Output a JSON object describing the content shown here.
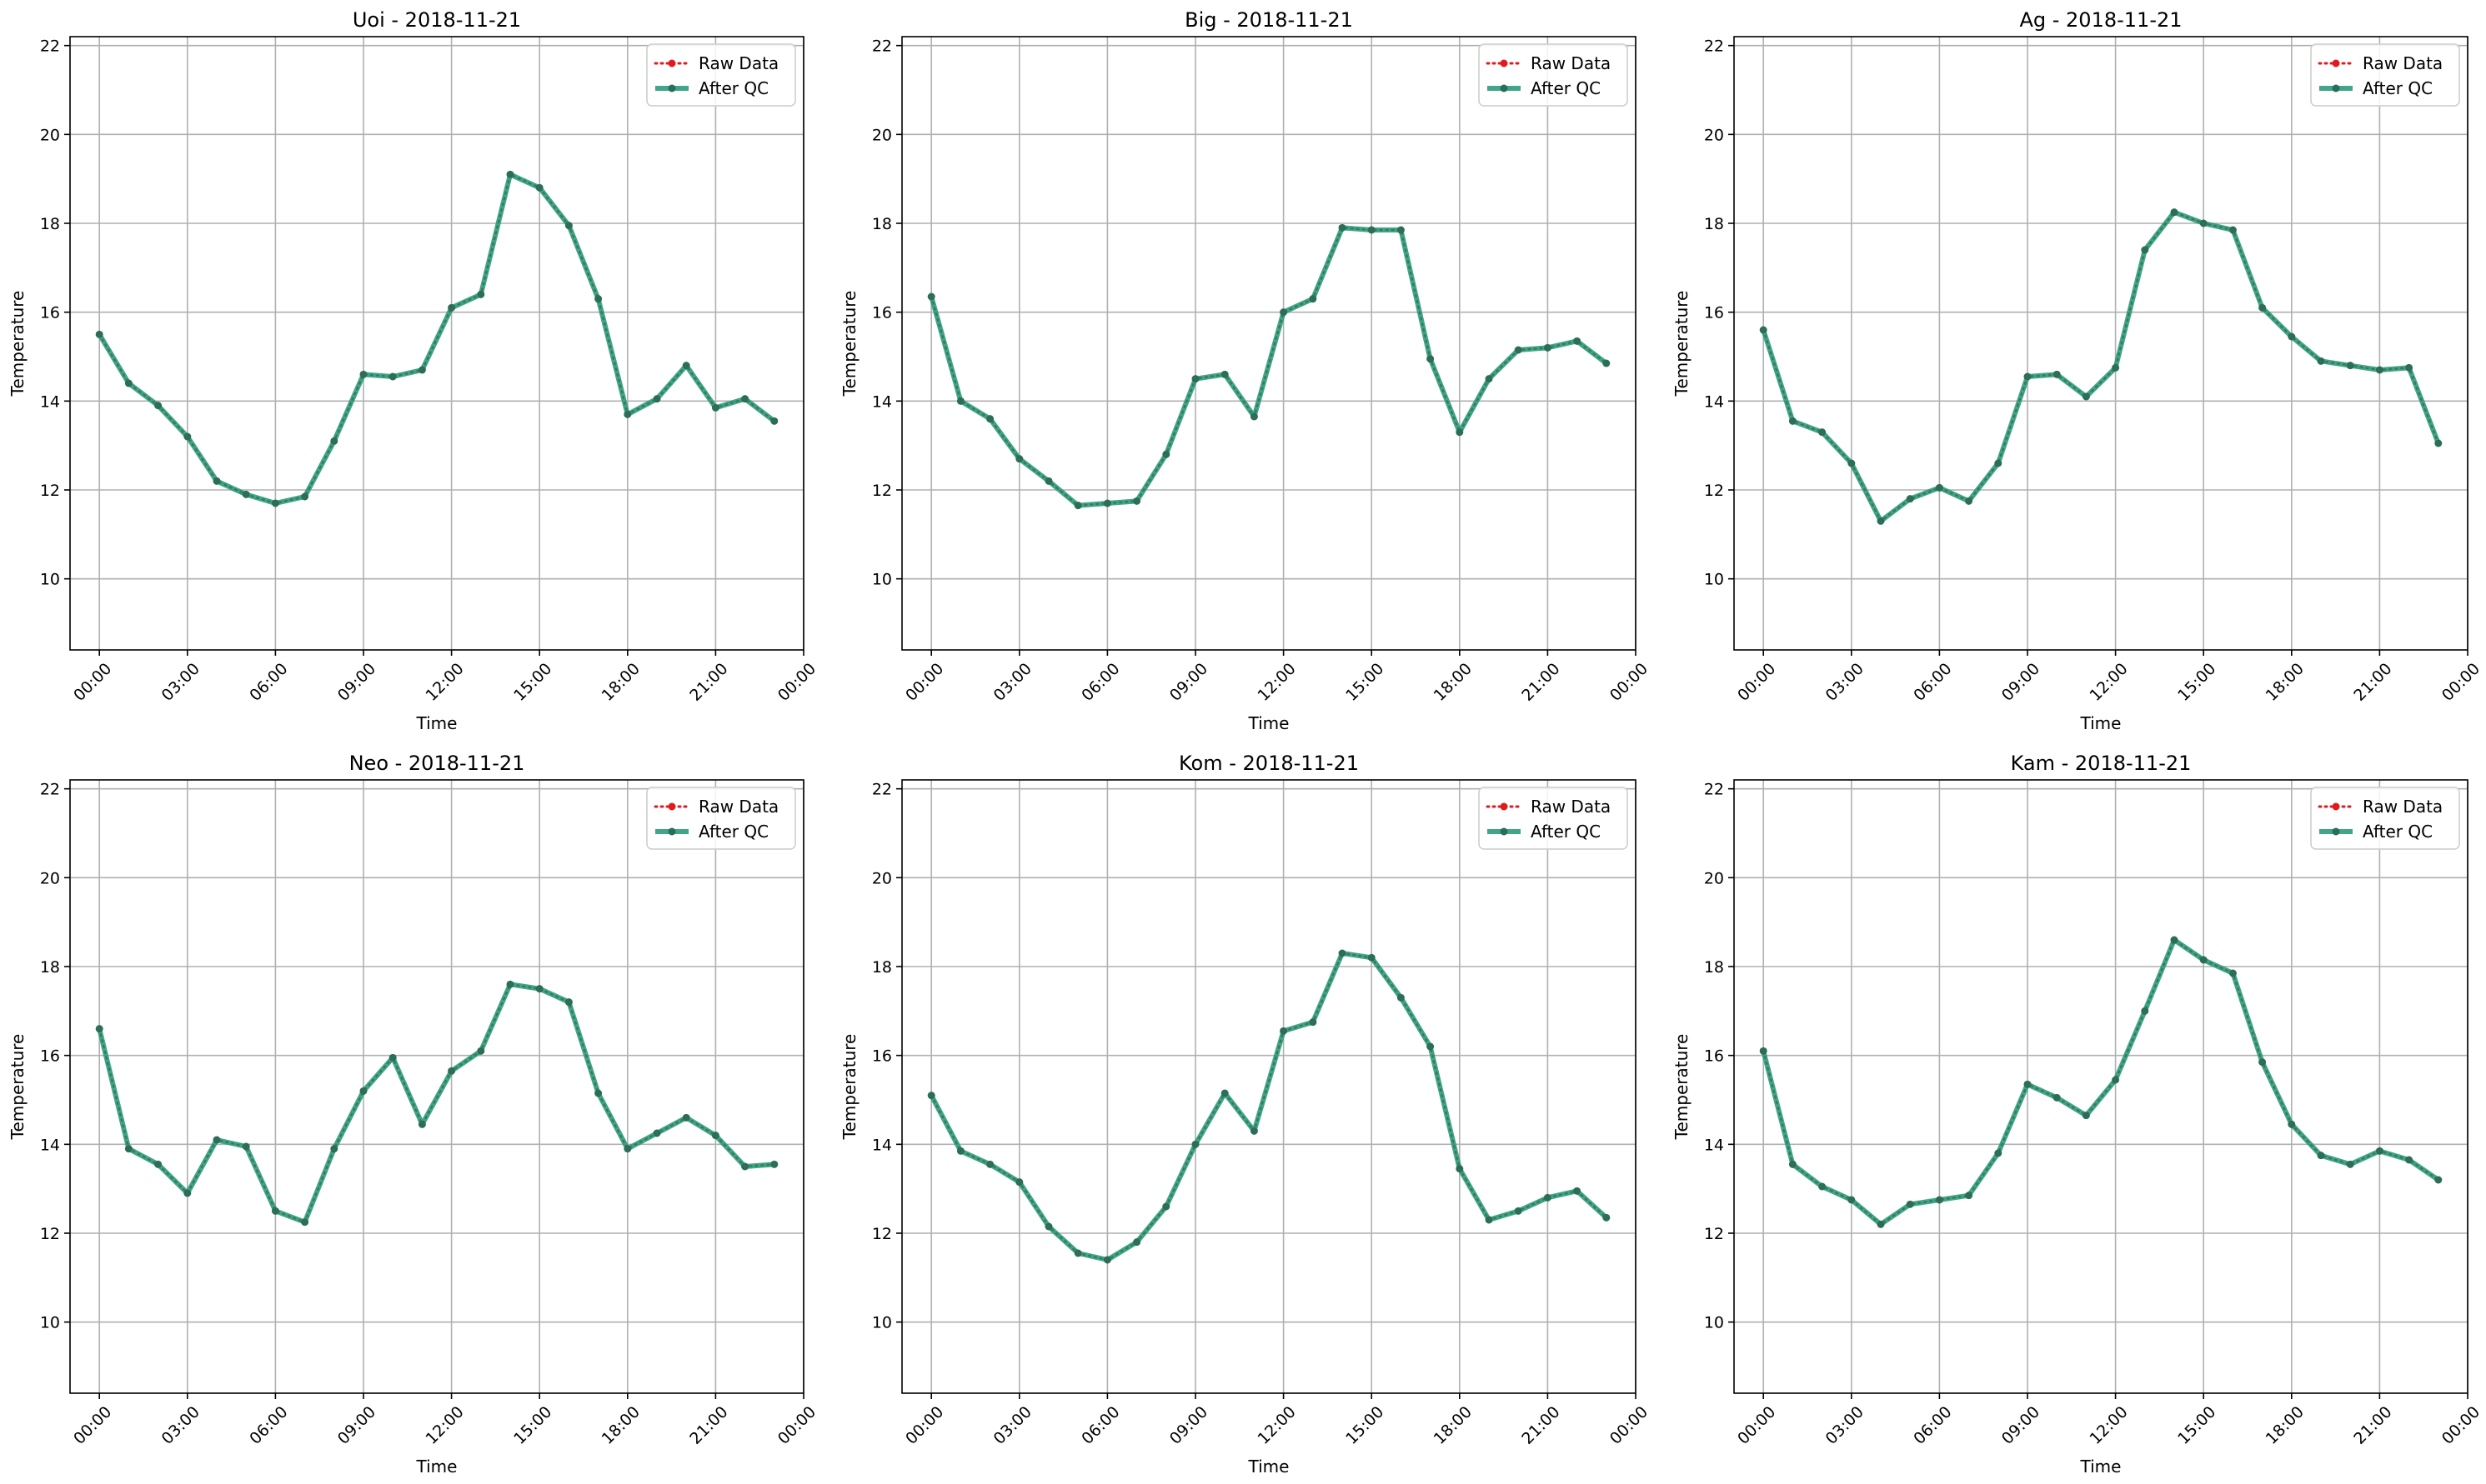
{
  "figure": {
    "x_ticks": [
      "00:00",
      "03:00",
      "06:00",
      "09:00",
      "12:00",
      "15:00",
      "18:00",
      "21:00",
      "00:00"
    ],
    "y_ticks": [
      10,
      12,
      14,
      16,
      18,
      20,
      22
    ],
    "xlabel": "Time",
    "ylabel": "Temperature",
    "legend": {
      "raw_label": "Raw Data",
      "qc_label": "After QC",
      "placement": "top-right"
    },
    "colors": {
      "raw": "#e31a1c",
      "qc": "#2a9d7c",
      "grid": "#b0b0b0"
    }
  },
  "chart_data": [
    {
      "type": "line",
      "title": "Uoi - 2018-11-21",
      "xlabel": "Time",
      "ylabel": "Temperature",
      "x_unit": "hour",
      "xlim": [
        -1,
        24
      ],
      "ylim": [
        8.4,
        22.2
      ],
      "grid": true,
      "x": [
        0,
        1,
        2,
        3,
        4,
        5,
        6,
        7,
        8,
        9,
        10,
        11,
        12,
        13,
        14,
        15,
        16,
        17,
        18,
        19,
        20,
        21,
        22,
        23
      ],
      "series": [
        {
          "name": "Raw Data",
          "style": "dotted-marker",
          "values": [
            15.5,
            14.4,
            13.9,
            13.2,
            12.2,
            11.9,
            11.7,
            11.85,
            13.1,
            14.6,
            14.55,
            14.7,
            16.1,
            16.4,
            19.1,
            18.8,
            17.95,
            16.3,
            13.7,
            14.05,
            14.8,
            13.85,
            14.05,
            13.55
          ]
        },
        {
          "name": "After QC",
          "style": "solid-marker",
          "values": [
            15.5,
            14.4,
            13.9,
            13.2,
            12.2,
            11.9,
            11.7,
            11.85,
            13.1,
            14.6,
            14.55,
            14.7,
            16.1,
            16.4,
            19.1,
            18.8,
            17.95,
            16.3,
            13.7,
            14.05,
            14.8,
            13.85,
            14.05,
            13.55
          ]
        }
      ]
    },
    {
      "type": "line",
      "title": "Big - 2018-11-21",
      "xlabel": "Time",
      "ylabel": "Temperature",
      "x_unit": "hour",
      "xlim": [
        -1,
        24
      ],
      "ylim": [
        8.4,
        22.2
      ],
      "grid": true,
      "x": [
        0,
        1,
        2,
        3,
        4,
        5,
        6,
        7,
        8,
        9,
        10,
        11,
        12,
        13,
        14,
        15,
        16,
        17,
        18,
        19,
        20,
        21,
        22,
        23
      ],
      "series": [
        {
          "name": "Raw Data",
          "style": "dotted-marker",
          "values": [
            16.35,
            14.0,
            13.6,
            12.7,
            12.2,
            11.65,
            11.7,
            11.75,
            12.8,
            14.5,
            14.6,
            13.65,
            16.0,
            16.3,
            17.9,
            17.85,
            17.85,
            14.95,
            13.3,
            14.5,
            15.15,
            15.2,
            15.35,
            14.85
          ]
        },
        {
          "name": "After QC",
          "style": "solid-marker",
          "values": [
            16.35,
            14.0,
            13.6,
            12.7,
            12.2,
            11.65,
            11.7,
            11.75,
            12.8,
            14.5,
            14.6,
            13.65,
            16.0,
            16.3,
            17.9,
            17.85,
            17.85,
            14.95,
            13.3,
            14.5,
            15.15,
            15.2,
            15.35,
            14.85
          ]
        }
      ]
    },
    {
      "type": "line",
      "title": "Ag - 2018-11-21",
      "xlabel": "Time",
      "ylabel": "Temperature",
      "x_unit": "hour",
      "xlim": [
        -1,
        24
      ],
      "ylim": [
        8.4,
        22.2
      ],
      "grid": true,
      "x": [
        0,
        1,
        2,
        3,
        4,
        5,
        6,
        7,
        8,
        9,
        10,
        11,
        12,
        13,
        14,
        15,
        16,
        17,
        18,
        19,
        20,
        21,
        22,
        23
      ],
      "series": [
        {
          "name": "Raw Data",
          "style": "dotted-marker",
          "values": [
            15.6,
            13.55,
            13.3,
            12.6,
            11.3,
            11.8,
            12.05,
            11.75,
            12.6,
            14.55,
            14.6,
            14.1,
            14.75,
            17.4,
            18.25,
            18.0,
            17.85,
            16.1,
            15.45,
            14.9,
            14.8,
            14.7,
            14.75,
            13.05
          ]
        },
        {
          "name": "After QC",
          "style": "solid-marker",
          "values": [
            15.6,
            13.55,
            13.3,
            12.6,
            11.3,
            11.8,
            12.05,
            11.75,
            12.6,
            14.55,
            14.6,
            14.1,
            14.75,
            17.4,
            18.25,
            18.0,
            17.85,
            16.1,
            15.45,
            14.9,
            14.8,
            14.7,
            14.75,
            13.05
          ]
        }
      ]
    },
    {
      "type": "line",
      "title": "Neo - 2018-11-21",
      "xlabel": "Time",
      "ylabel": "Temperature",
      "x_unit": "hour",
      "xlim": [
        -1,
        24
      ],
      "ylim": [
        8.4,
        22.2
      ],
      "grid": true,
      "x": [
        0,
        1,
        2,
        3,
        4,
        5,
        6,
        7,
        8,
        9,
        10,
        11,
        12,
        13,
        14,
        15,
        16,
        17,
        18,
        19,
        20,
        21,
        22,
        23
      ],
      "series": [
        {
          "name": "Raw Data",
          "style": "dotted-marker",
          "values": [
            16.6,
            13.9,
            13.55,
            12.9,
            14.1,
            13.95,
            12.5,
            12.25,
            13.9,
            15.2,
            15.95,
            14.45,
            15.65,
            16.1,
            17.6,
            17.5,
            17.2,
            15.15,
            13.9,
            14.25,
            14.6,
            14.2,
            13.5,
            13.55
          ]
        },
        {
          "name": "After QC",
          "style": "solid-marker",
          "values": [
            16.6,
            13.9,
            13.55,
            12.9,
            14.1,
            13.95,
            12.5,
            12.25,
            13.9,
            15.2,
            15.95,
            14.45,
            15.65,
            16.1,
            17.6,
            17.5,
            17.2,
            15.15,
            13.9,
            14.25,
            14.6,
            14.2,
            13.5,
            13.55
          ]
        }
      ]
    },
    {
      "type": "line",
      "title": "Kom - 2018-11-21",
      "xlabel": "Time",
      "ylabel": "Temperature",
      "x_unit": "hour",
      "xlim": [
        -1,
        24
      ],
      "ylim": [
        8.4,
        22.2
      ],
      "grid": true,
      "x": [
        0,
        1,
        2,
        3,
        4,
        5,
        6,
        7,
        8,
        9,
        10,
        11,
        12,
        13,
        14,
        15,
        16,
        17,
        18,
        19,
        20,
        21,
        22,
        23
      ],
      "series": [
        {
          "name": "Raw Data",
          "style": "dotted-marker",
          "values": [
            15.1,
            13.85,
            13.55,
            13.15,
            12.15,
            11.55,
            11.4,
            11.8,
            12.6,
            14.0,
            15.15,
            14.3,
            16.55,
            16.75,
            18.3,
            18.2,
            17.3,
            16.2,
            13.45,
            12.3,
            12.5,
            12.8,
            12.95,
            12.35
          ]
        },
        {
          "name": "After QC",
          "style": "solid-marker",
          "values": [
            15.1,
            13.85,
            13.55,
            13.15,
            12.15,
            11.55,
            11.4,
            11.8,
            12.6,
            14.0,
            15.15,
            14.3,
            16.55,
            16.75,
            18.3,
            18.2,
            17.3,
            16.2,
            13.45,
            12.3,
            12.5,
            12.8,
            12.95,
            12.35
          ]
        }
      ]
    },
    {
      "type": "line",
      "title": "Kam - 2018-11-21",
      "xlabel": "Time",
      "ylabel": "Temperature",
      "x_unit": "hour",
      "xlim": [
        -1,
        24
      ],
      "ylim": [
        8.4,
        22.2
      ],
      "grid": true,
      "x": [
        0,
        1,
        2,
        3,
        4,
        5,
        6,
        7,
        8,
        9,
        10,
        11,
        12,
        13,
        14,
        15,
        16,
        17,
        18,
        19,
        20,
        21,
        22,
        23
      ],
      "series": [
        {
          "name": "Raw Data",
          "style": "dotted-marker",
          "values": [
            16.1,
            13.55,
            13.05,
            12.75,
            12.2,
            12.65,
            12.75,
            12.85,
            13.8,
            15.35,
            15.05,
            14.65,
            15.45,
            17.0,
            18.6,
            18.15,
            17.85,
            15.85,
            14.45,
            13.75,
            13.55,
            13.85,
            13.65,
            13.2
          ]
        },
        {
          "name": "After QC",
          "style": "solid-marker",
          "values": [
            16.1,
            13.55,
            13.05,
            12.75,
            12.2,
            12.65,
            12.75,
            12.85,
            13.8,
            15.35,
            15.05,
            14.65,
            15.45,
            17.0,
            18.6,
            18.15,
            17.85,
            15.85,
            14.45,
            13.75,
            13.55,
            13.85,
            13.65,
            13.2
          ]
        }
      ]
    }
  ]
}
